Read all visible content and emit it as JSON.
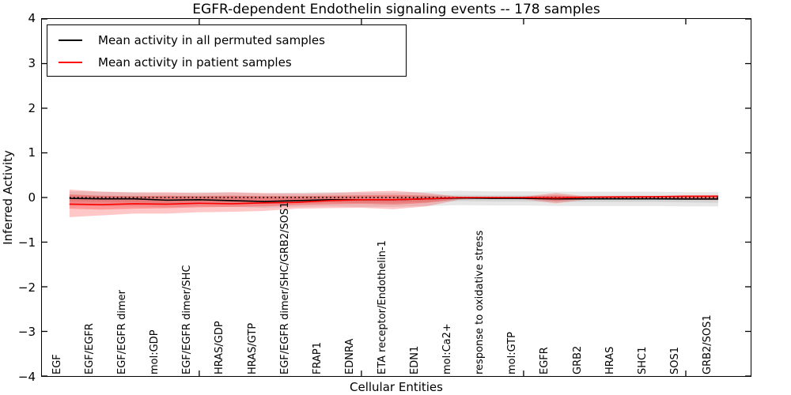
{
  "chart_data": {
    "type": "line",
    "title": "EGFR-dependent Endothelin signaling events -- 178 samples",
    "xlabel": "Cellular Entities",
    "ylabel": "Inferred Activity",
    "grid": false,
    "legend_position": "upper left",
    "legend": [
      {
        "label": "Mean activity in all permuted samples",
        "color": "#000000"
      },
      {
        "label": "Mean activity in patient samples",
        "color": "#ff0000"
      }
    ],
    "ylim": [
      -4,
      4
    ],
    "xlim": [
      0.15,
      22.0
    ],
    "yticks": [
      4,
      3,
      2,
      1,
      0,
      -1,
      -2,
      -3,
      -4
    ],
    "ytick_labels": [
      "4",
      "3",
      "2",
      "1",
      "0",
      "−1",
      "−2",
      "−3",
      "−4"
    ],
    "xticks": [
      5,
      10,
      15,
      20
    ],
    "x": [
      1,
      2,
      3,
      4,
      5,
      6,
      7,
      8,
      9,
      10,
      11,
      12,
      13,
      14,
      15,
      16,
      17,
      18,
      19,
      20,
      21
    ],
    "categories": [
      "EGF",
      "EGF/EGFR",
      "EGF/EGFR dimer",
      "mol:GDP",
      "EGF/EGFR dimer/SHC",
      "HRAS/GDP",
      "HRAS/GTP",
      "EGF/EGFR dimer/SHC/GRB2/SOS1",
      "FRAP1",
      "EDNRA",
      "ETA receptor/Endothelin-1",
      "EDN1",
      "mol:Ca2+",
      "response to oxidative stress",
      "mol:GTP",
      "EGFR",
      "GRB2",
      "HRAS",
      "SHC1",
      "SOS1",
      "GRB2/SOS1"
    ],
    "zero_line": {
      "y": 0,
      "style": "dotted",
      "color": "#000000"
    },
    "series": [
      {
        "name": "Mean activity in all permuted samples",
        "color": "#000000",
        "values": [
          -0.02,
          -0.03,
          -0.03,
          -0.06,
          -0.05,
          -0.07,
          -0.09,
          -0.07,
          -0.05,
          -0.05,
          -0.05,
          -0.03,
          -0.01,
          -0.02,
          -0.02,
          -0.03,
          -0.03,
          -0.03,
          -0.03,
          -0.035,
          -0.035
        ]
      },
      {
        "name": "Mean activity in patient samples",
        "color": "#ff0000",
        "values": [
          -0.15,
          -0.16,
          -0.14,
          -0.15,
          -0.13,
          -0.14,
          -0.12,
          -0.11,
          -0.07,
          -0.05,
          -0.05,
          -0.03,
          0.0,
          0.0,
          0.0,
          -0.01,
          0.01,
          0.015,
          0.02,
          0.03,
          0.03
        ]
      }
    ],
    "bands": [
      {
        "name": "permuted-std-outer",
        "color": "#aaaaaa",
        "opacity": 0.28,
        "upper": [
          0.14,
          0.13,
          0.12,
          0.1,
          0.12,
          0.11,
          0.09,
          0.11,
          0.12,
          0.11,
          0.11,
          0.13,
          0.15,
          0.14,
          0.14,
          0.13,
          0.13,
          0.13,
          0.13,
          0.12,
          0.12
        ],
        "lower": [
          -0.18,
          -0.19,
          -0.2,
          -0.22,
          -0.2,
          -0.21,
          -0.23,
          -0.21,
          -0.2,
          -0.21,
          -0.21,
          -0.19,
          -0.17,
          -0.18,
          -0.18,
          -0.19,
          -0.19,
          -0.19,
          -0.19,
          -0.2,
          -0.2
        ]
      },
      {
        "name": "permuted-std-inner",
        "color": "#aaaaaa",
        "opacity": 0.32,
        "upper": [
          0.05,
          0.04,
          0.04,
          0.03,
          0.04,
          0.04,
          0.03,
          0.04,
          0.04,
          0.04,
          0.04,
          0.05,
          0.06,
          0.05,
          0.05,
          0.04,
          0.04,
          0.04,
          0.04,
          0.04,
          0.05
        ],
        "lower": [
          -0.09,
          -0.1,
          -0.11,
          -0.13,
          -0.11,
          -0.12,
          -0.14,
          -0.12,
          -0.11,
          -0.12,
          -0.12,
          -0.1,
          -0.08,
          -0.09,
          -0.09,
          -0.1,
          -0.1,
          -0.1,
          -0.1,
          -0.11,
          -0.12
        ]
      },
      {
        "name": "patient-std-outer",
        "color": "#ff0000",
        "opacity": 0.22,
        "upper": [
          0.18,
          0.13,
          0.11,
          0.12,
          0.1,
          0.12,
          0.1,
          0.09,
          0.1,
          0.13,
          0.15,
          0.1,
          0.02,
          0.01,
          0.02,
          0.1,
          0.02,
          0.03,
          0.03,
          0.03,
          0.05
        ],
        "lower": [
          -0.44,
          -0.4,
          -0.36,
          -0.36,
          -0.33,
          -0.32,
          -0.3,
          -0.25,
          -0.24,
          -0.23,
          -0.26,
          -0.2,
          -0.05,
          -0.02,
          -0.04,
          -0.13,
          -0.04,
          -0.04,
          -0.04,
          -0.05,
          -0.06
        ]
      },
      {
        "name": "patient-std-inner",
        "color": "#ff0000",
        "opacity": 0.25,
        "upper": [
          0.07,
          0.04,
          0.03,
          0.04,
          0.03,
          0.04,
          0.03,
          0.03,
          0.04,
          0.05,
          0.06,
          0.04,
          0.01,
          0.01,
          0.01,
          0.05,
          0.01,
          0.02,
          0.02,
          0.02,
          0.03
        ],
        "lower": [
          -0.25,
          -0.27,
          -0.25,
          -0.24,
          -0.22,
          -0.21,
          -0.2,
          -0.17,
          -0.15,
          -0.14,
          -0.16,
          -0.12,
          -0.03,
          -0.01,
          -0.02,
          -0.08,
          -0.02,
          -0.02,
          -0.02,
          -0.03,
          -0.03
        ]
      }
    ]
  }
}
